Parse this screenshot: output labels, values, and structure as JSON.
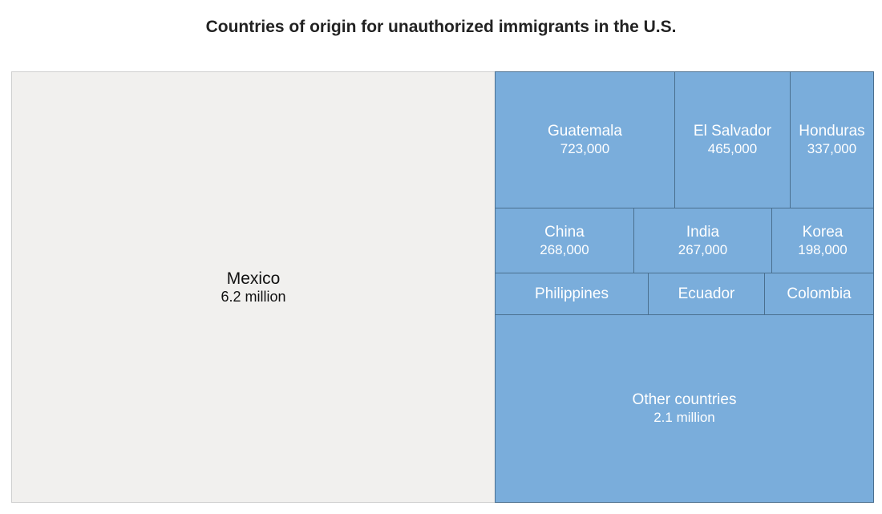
{
  "chart_data": {
    "type": "treemap",
    "title": "Countries of origin for unauthorized immigrants in the U.S.",
    "colors": {
      "highlight": "#f1f0ee",
      "other": "#7aaddb",
      "border": "#4a6f8f",
      "highlight_text": "#111111",
      "other_text": "#ffffff"
    },
    "nodes": [
      {
        "name": "Mexico",
        "label": "6.2 million",
        "value": 6200000,
        "highlight": true
      },
      {
        "name": "Guatemala",
        "label": "723,000",
        "value": 723000
      },
      {
        "name": "El Salvador",
        "label": "465,000",
        "value": 465000
      },
      {
        "name": "Honduras",
        "label": "337,000",
        "value": 337000
      },
      {
        "name": "China",
        "label": "268,000",
        "value": 268000
      },
      {
        "name": "India",
        "label": "267,000",
        "value": 267000
      },
      {
        "name": "Korea",
        "label": "198,000",
        "value": 198000
      },
      {
        "name": "Philippines",
        "label": "",
        "value": null
      },
      {
        "name": "Ecuador",
        "label": "",
        "value": null
      },
      {
        "name": "Colombia",
        "label": "",
        "value": null
      },
      {
        "name": "Other countries",
        "label": "2.1 million",
        "value": 2100000
      }
    ]
  }
}
